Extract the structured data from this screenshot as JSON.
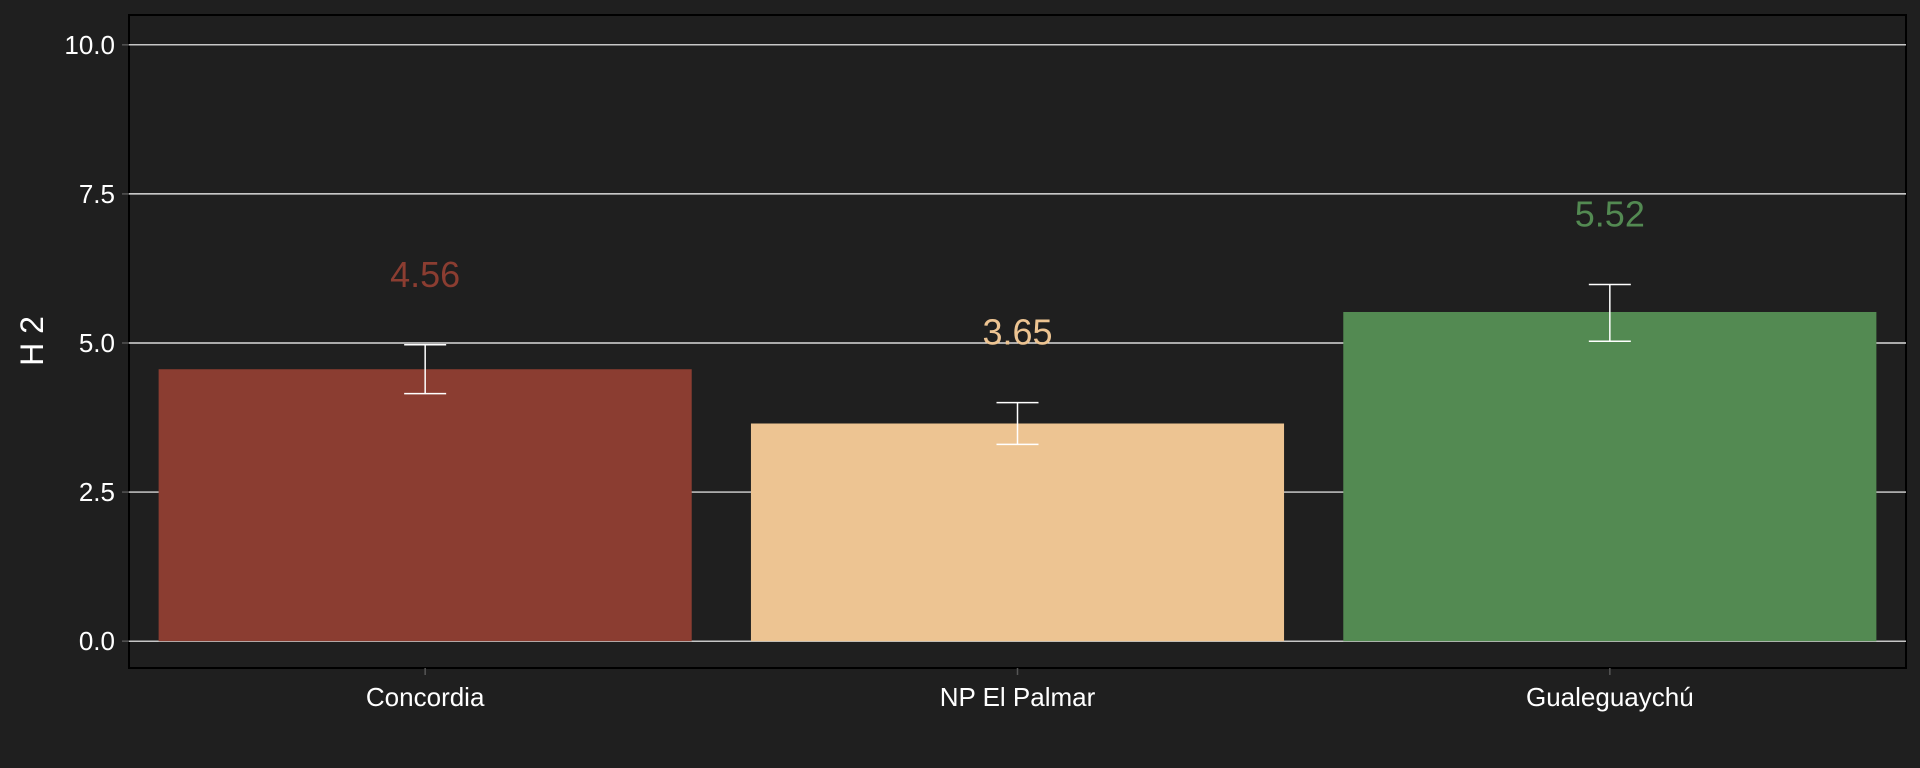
{
  "chart_data": {
    "type": "bar",
    "title": "",
    "xlabel": "",
    "ylabel": "H 2",
    "ylim": [
      -0.45,
      10.5
    ],
    "yticks": [
      0.0,
      2.5,
      5.0,
      7.5,
      10.0
    ],
    "ytick_labels": [
      "0.0",
      "2.5",
      "5.0",
      "7.5",
      "10.0"
    ],
    "grid": true,
    "categories": [
      "Concordia",
      "NP El Palmar",
      "Gualeguaychú"
    ],
    "values": [
      4.56,
      3.65,
      5.52
    ],
    "value_labels": [
      "4.56",
      "3.65",
      "5.52"
    ],
    "error_low": [
      4.15,
      3.3,
      5.03
    ],
    "error_high": [
      4.97,
      4.0,
      5.98
    ],
    "colors": [
      "#8b3d31",
      "#edc492",
      "#538a52"
    ],
    "background": "#1f1f1f",
    "grid_color": "#ffffff"
  }
}
